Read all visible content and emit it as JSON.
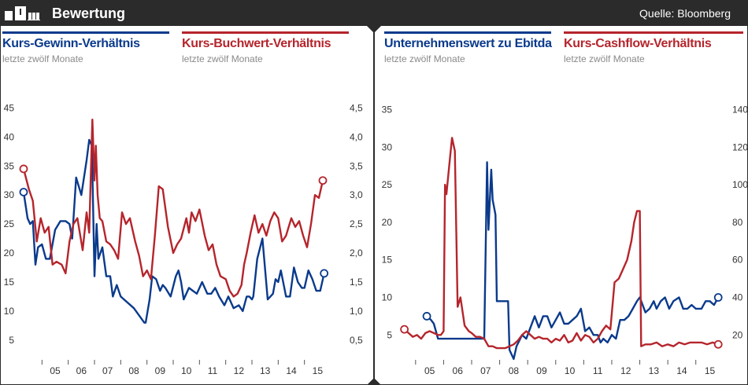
{
  "header": {
    "title": "Bewertung",
    "source": "Quelle: Bloomberg"
  },
  "colors": {
    "blue": "#0a3a8c",
    "red": "#b5252c",
    "dark": "#2b2b2b",
    "grey": "#8a8a8a"
  },
  "legends": {
    "kgv": {
      "name": "Kurs-Gewinn-Verhältnis",
      "sub": "letzte zwölf Monate"
    },
    "kbv": {
      "name": "Kurs-Buchwert-Verhältnis",
      "sub": "letzte zwölf Monate"
    },
    "ev": {
      "name": "Unternehmenswert zu Ebitda",
      "sub": "letzte zwölf Monate"
    },
    "kcv": {
      "name": "Kurs-Cashflow-Verhältnis",
      "sub": "letzte zwölf Monate"
    }
  },
  "chart_data": [
    {
      "type": "line",
      "title": "",
      "x_ticks": [
        "05",
        "06",
        "07",
        "08",
        "09",
        "10",
        "11",
        "12",
        "13",
        "14",
        "15"
      ],
      "x_range": [
        2004.0,
        2016.3
      ],
      "y_left": {
        "ticks": [
          "5",
          "10",
          "15",
          "20",
          "25",
          "30",
          "35",
          "40",
          "45"
        ],
        "values": [
          5,
          10,
          15,
          20,
          25,
          30,
          35,
          40,
          45
        ],
        "range": [
          2,
          46
        ]
      },
      "y_right": {
        "ticks": [
          "0,5",
          "1,0",
          "1,5",
          "2,0",
          "2,5",
          "3,0",
          "3,5",
          "4,0",
          "4,5"
        ],
        "values": [
          0.5,
          1,
          1.5,
          2,
          2.5,
          3,
          3.5,
          4,
          4.5
        ],
        "range": [
          0.2,
          4.6
        ]
      },
      "series": [
        {
          "name": "Kurs-Gewinn-Verhältnis",
          "axis": "left",
          "color": "blue",
          "x": [
            2004.3,
            2004.45,
            2004.55,
            2004.65,
            2004.75,
            2004.85,
            2005.0,
            2005.15,
            2005.3,
            2005.5,
            2005.7,
            2005.9,
            2006.05,
            2006.15,
            2006.3,
            2006.5,
            2006.7,
            2006.8,
            2006.9,
            2007.0,
            2007.08,
            2007.15,
            2007.3,
            2007.45,
            2007.6,
            2007.7,
            2007.85,
            2008.0,
            2008.5,
            2008.9,
            2008.95,
            2009.1,
            2009.2,
            2009.35,
            2009.5,
            2009.6,
            2009.7,
            2009.9,
            2010.1,
            2010.2,
            2010.3,
            2010.4,
            2010.6,
            2010.75,
            2010.9,
            2011.1,
            2011.3,
            2011.45,
            2011.6,
            2011.75,
            2011.95,
            2012.1,
            2012.3,
            2012.5,
            2012.65,
            2012.8,
            2012.9,
            2013.0,
            2013.05,
            2013.2,
            2013.4,
            2013.6,
            2013.8,
            2013.9,
            2014.0,
            2014.1,
            2014.3,
            2014.45,
            2014.6,
            2014.75,
            2014.9,
            2015.0,
            2015.15,
            2015.3,
            2015.45,
            2015.6,
            2015.75
          ],
          "y": [
            30.5,
            26,
            25,
            25.5,
            18,
            21,
            21.5,
            19,
            19,
            24,
            25.5,
            25.5,
            25,
            22.5,
            33,
            30,
            36,
            39.5,
            38.5,
            16,
            25,
            19,
            21,
            16,
            16,
            12.5,
            14.5,
            12.5,
            10.5,
            8,
            8,
            12,
            16,
            15.5,
            13.5,
            14.5,
            14,
            12.5,
            16,
            17,
            15,
            12,
            14,
            13.5,
            13,
            15,
            13,
            13,
            14,
            12.5,
            11,
            12.5,
            10.5,
            11,
            10,
            12.5,
            12.5,
            12,
            12.5,
            19,
            22.5,
            12,
            13,
            15.5,
            15,
            17,
            12.5,
            12.5,
            17.5,
            15,
            14,
            14,
            17,
            15.5,
            13.5,
            13.5,
            16.5
          ]
        },
        {
          "name": "Kurs-Buchwert-Verhältnis",
          "axis": "right",
          "color": "red",
          "x": [
            2004.3,
            2004.5,
            2004.65,
            2004.8,
            2004.95,
            2005.1,
            2005.25,
            2005.4,
            2005.55,
            2005.75,
            2005.9,
            2006.05,
            2006.2,
            2006.35,
            2006.55,
            2006.7,
            2006.8,
            2006.92,
            2007.0,
            2007.05,
            2007.12,
            2007.2,
            2007.3,
            2007.45,
            2007.6,
            2007.75,
            2007.9,
            2008.05,
            2008.2,
            2008.35,
            2008.55,
            2008.7,
            2008.85,
            2009.0,
            2009.15,
            2009.3,
            2009.45,
            2009.6,
            2009.8,
            2010.0,
            2010.15,
            2010.3,
            2010.5,
            2010.6,
            2010.7,
            2010.85,
            2011.0,
            2011.2,
            2011.35,
            2011.5,
            2011.65,
            2011.8,
            2012.0,
            2012.15,
            2012.3,
            2012.45,
            2012.6,
            2012.7,
            2012.8,
            2012.95,
            2013.1,
            2013.25,
            2013.4,
            2013.55,
            2013.7,
            2013.85,
            2014.0,
            2014.15,
            2014.3,
            2014.5,
            2014.65,
            2014.8,
            2014.95,
            2015.1,
            2015.25,
            2015.4,
            2015.55,
            2015.7
          ],
          "y": [
            3.45,
            3.1,
            2.9,
            2.2,
            2.6,
            2.35,
            2.45,
            1.8,
            1.85,
            1.8,
            1.65,
            2.2,
            2.5,
            2.6,
            2.05,
            2.7,
            2.35,
            4.3,
            3.25,
            3.85,
            3.0,
            2.6,
            2.55,
            2.2,
            2.15,
            2.05,
            1.9,
            2.7,
            2.5,
            2.6,
            2.2,
            1.95,
            1.6,
            1.7,
            1.55,
            2.3,
            3.15,
            3.1,
            2.45,
            2.0,
            2.15,
            2.25,
            2.6,
            2.35,
            2.7,
            2.55,
            2.75,
            2.3,
            2.05,
            2.15,
            1.8,
            1.6,
            1.55,
            1.35,
            1.25,
            1.3,
            1.45,
            1.8,
            2.0,
            2.35,
            2.65,
            2.35,
            2.5,
            2.3,
            2.55,
            2.7,
            2.6,
            2.2,
            2.3,
            2.6,
            2.45,
            2.55,
            2.3,
            2.1,
            2.5,
            3.0,
            2.95,
            3.25
          ]
        }
      ],
      "markers": [
        {
          "series": "Kurs-Gewinn-Verhältnis",
          "x": 2004.3,
          "y": 30.5
        },
        {
          "series": "Kurs-Gewinn-Verhältnis",
          "x": 2015.75,
          "y": 16.5
        },
        {
          "series": "Kurs-Buchwert-Verhältnis",
          "x": 2004.3,
          "y": 3.45
        },
        {
          "series": "Kurs-Buchwert-Verhältnis",
          "x": 2015.7,
          "y": 3.25
        }
      ]
    },
    {
      "type": "line",
      "title": "",
      "x_ticks": [
        "05",
        "06",
        "07",
        "08",
        "09",
        "10",
        "11",
        "12",
        "13",
        "14",
        "15"
      ],
      "x_range": [
        2003.6,
        2016.3
      ],
      "y_left": {
        "ticks": [
          "5",
          "10",
          "15",
          "20",
          "25",
          "30",
          "35"
        ],
        "values": [
          5,
          10,
          15,
          20,
          25,
          30,
          35
        ],
        "range": [
          2,
          36
        ]
      },
      "y_right": {
        "ticks": [
          "20",
          "40",
          "60",
          "80",
          "100",
          "120",
          "140"
        ],
        "values": [
          20,
          40,
          60,
          80,
          100,
          120,
          140
        ],
        "range": [
          8,
          144
        ]
      },
      "series": [
        {
          "name": "Unternehmenswert zu Ebitda",
          "axis": "left",
          "color": "blue",
          "x": [
            2005.4,
            2005.55,
            2005.65,
            2005.8,
            2006.0,
            2006.5,
            2007.0,
            2007.45,
            2007.55,
            2007.6,
            2007.7,
            2007.75,
            2007.85,
            2007.9,
            2008.0,
            2008.1,
            2008.3,
            2008.35,
            2008.5,
            2008.6,
            2008.8,
            2008.95,
            2009.1,
            2009.25,
            2009.4,
            2009.55,
            2009.7,
            2009.85,
            2010.0,
            2010.15,
            2010.3,
            2010.45,
            2010.6,
            2010.75,
            2010.9,
            2011.05,
            2011.2,
            2011.35,
            2011.5,
            2011.6,
            2011.7,
            2011.85,
            2012.0,
            2012.15,
            2012.3,
            2012.45,
            2012.6,
            2012.75,
            2012.9,
            2013.0,
            2013.2,
            2013.35,
            2013.5,
            2013.6,
            2013.75,
            2013.9,
            2014.05,
            2014.2,
            2014.4,
            2014.55,
            2014.7,
            2014.85,
            2015.0,
            2015.2,
            2015.35,
            2015.5,
            2015.65,
            2015.8
          ],
          "y": [
            7.5,
            7,
            6.5,
            4.5,
            4.5,
            4.5,
            4.5,
            4.5,
            28,
            19,
            27,
            23,
            21,
            9.5,
            9.5,
            9.5,
            9.5,
            3,
            1.8,
            3.5,
            5,
            4.5,
            6,
            7.5,
            6,
            7.5,
            7.5,
            6,
            7,
            8,
            6.5,
            6.5,
            7,
            7.5,
            8.5,
            5.5,
            6,
            5,
            5,
            4,
            4.5,
            4,
            5,
            4.5,
            7,
            7,
            7.5,
            8.5,
            9.5,
            10,
            8,
            8.5,
            9.5,
            8.5,
            9.5,
            10,
            8.5,
            9.5,
            10,
            8.5,
            8.5,
            9,
            8.5,
            8.5,
            9.5,
            9.5,
            9,
            10
          ]
        },
        {
          "name": "Kurs-Cashflow-Verhältnis",
          "axis": "right",
          "color": "red",
          "x": [
            2004.6,
            2004.75,
            2004.9,
            2005.05,
            2005.2,
            2005.35,
            2005.5,
            2005.65,
            2005.8,
            2005.9,
            2006.0,
            2006.05,
            2006.1,
            2006.2,
            2006.3,
            2006.4,
            2006.5,
            2006.6,
            2006.75,
            2006.9,
            2007.0,
            2007.15,
            2007.3,
            2007.45,
            2007.6,
            2007.75,
            2007.9,
            2008.05,
            2008.2,
            2008.35,
            2008.5,
            2008.65,
            2008.8,
            2008.95,
            2009.1,
            2009.25,
            2009.4,
            2009.55,
            2009.7,
            2009.85,
            2010.0,
            2010.15,
            2010.3,
            2010.45,
            2010.6,
            2010.75,
            2010.9,
            2011.05,
            2011.2,
            2011.35,
            2011.5,
            2011.65,
            2011.8,
            2011.95,
            2012.1,
            2012.25,
            2012.4,
            2012.55,
            2012.7,
            2012.8,
            2012.9,
            2013.0,
            2013.05,
            2013.2,
            2013.4,
            2013.6,
            2013.8,
            2014.0,
            2014.2,
            2014.4,
            2014.6,
            2014.8,
            2015.0,
            2015.2,
            2015.4,
            2015.6,
            2015.8
          ],
          "y": [
            23,
            21,
            19,
            20,
            18,
            21,
            22,
            21,
            20,
            20,
            22,
            100,
            95,
            110,
            125,
            118,
            35,
            40,
            25,
            22,
            21,
            19,
            19,
            18,
            14,
            14,
            13,
            13,
            13,
            14,
            15,
            17,
            20,
            22,
            20,
            18,
            19,
            18,
            18,
            16,
            18,
            17,
            20,
            16,
            17,
            21,
            17,
            20,
            19,
            16,
            18,
            22,
            25,
            23,
            48,
            50,
            55,
            60,
            70,
            80,
            86,
            86,
            14,
            15,
            15,
            16,
            14,
            15,
            14,
            16,
            15,
            16,
            16,
            16,
            15,
            16,
            15
          ]
        }
      ],
      "markers": [
        {
          "series": "Unternehmenswert zu Ebitda",
          "x": 2005.4,
          "y": 7.5
        },
        {
          "series": "Unternehmenswert zu Ebitda",
          "x": 2015.8,
          "y": 10
        },
        {
          "series": "Kurs-Cashflow-Verhältnis",
          "x": 2004.6,
          "y": 23
        },
        {
          "series": "Kurs-Cashflow-Verhältnis",
          "x": 2015.8,
          "y": 15
        }
      ]
    }
  ]
}
